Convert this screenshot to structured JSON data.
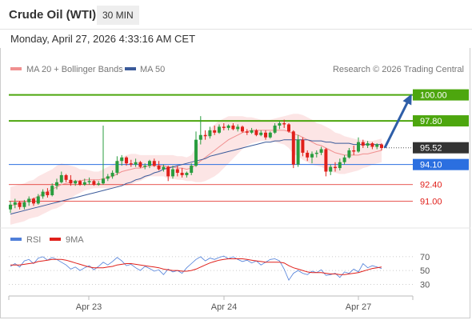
{
  "header": {
    "title": "Crude Oil (WTI)",
    "timeframe": "30 MIN",
    "timestamp": "Monday, April 27, 2026 4:33:16 AM CET"
  },
  "legend": {
    "ma20": "MA 20 + Bollinger Bands",
    "ma50": "MA 50",
    "credit": "Research © 2026 Trading Central",
    "rsi": "RSI",
    "rsi_ma": "9MA"
  },
  "colors": {
    "up": "#2a9d3f",
    "down": "#e0201b",
    "ma20": "#f09090",
    "ma50": "#3a5a9a",
    "band": "#fbe0e0",
    "resistance": "#4da60e",
    "support": "#2b6fe0",
    "level_red": "#e0201b",
    "current": "#333333",
    "arrow": "#2e5ea8",
    "rsi": "#4f7fd9",
    "rsi_ma": "#e0201b"
  },
  "chart_data": {
    "type": "candlestick",
    "ylim": [
      89.4,
      101.6
    ],
    "x_ticks": [
      "Apr 23",
      "Apr 24",
      "Apr 27"
    ],
    "current_price": 95.52,
    "target_price": 100.0,
    "levels": [
      {
        "value": 100.0,
        "label": "100.00",
        "kind": "resistance"
      },
      {
        "value": 97.8,
        "label": "97.80",
        "kind": "resistance"
      },
      {
        "value": 95.52,
        "label": "95.52",
        "kind": "current"
      },
      {
        "value": 94.1,
        "label": "94.10",
        "kind": "support"
      },
      {
        "value": 92.4,
        "label": "92.40",
        "kind": "support-red"
      },
      {
        "value": 91.0,
        "label": "91.00",
        "kind": "support-red"
      }
    ],
    "candles": [
      [
        90.3,
        91.0,
        90.0,
        90.7
      ],
      [
        90.7,
        91.2,
        90.4,
        90.9
      ],
      [
        90.9,
        91.0,
        90.3,
        90.5
      ],
      [
        90.5,
        91.1,
        90.3,
        90.9
      ],
      [
        90.9,
        91.4,
        90.6,
        91.2
      ],
      [
        91.2,
        91.3,
        90.6,
        90.8
      ],
      [
        90.8,
        91.6,
        90.7,
        91.4
      ],
      [
        91.4,
        92.0,
        91.2,
        91.8
      ],
      [
        91.8,
        92.1,
        91.3,
        91.5
      ],
      [
        91.5,
        92.5,
        91.4,
        92.3
      ],
      [
        92.3,
        92.9,
        92.0,
        92.6
      ],
      [
        92.6,
        93.5,
        92.5,
        93.2
      ],
      [
        93.2,
        93.3,
        92.6,
        92.8
      ],
      [
        92.8,
        93.2,
        92.3,
        92.5
      ],
      [
        92.5,
        92.8,
        92.3,
        92.7
      ],
      [
        92.7,
        92.8,
        92.3,
        92.4
      ],
      [
        92.4,
        92.9,
        92.3,
        92.6
      ],
      [
        92.6,
        93.0,
        92.4,
        92.7
      ],
      [
        92.7,
        92.8,
        92.3,
        92.4
      ],
      [
        92.4,
        92.7,
        92.3,
        92.5
      ],
      [
        92.5,
        97.4,
        92.4,
        92.9
      ],
      [
        92.9,
        93.3,
        92.7,
        93.1
      ],
      [
        93.1,
        93.6,
        92.9,
        93.4
      ],
      [
        93.4,
        94.8,
        93.2,
        94.4
      ],
      [
        94.4,
        94.9,
        94.0,
        94.7
      ],
      [
        94.7,
        94.8,
        94.0,
        94.2
      ],
      [
        94.2,
        94.5,
        93.9,
        94.1
      ],
      [
        94.1,
        94.6,
        93.9,
        94.3
      ],
      [
        94.3,
        94.4,
        93.8,
        93.9
      ],
      [
        93.9,
        94.2,
        93.7,
        94.0
      ],
      [
        94.0,
        94.5,
        93.8,
        94.4
      ],
      [
        94.4,
        94.6,
        93.9,
        94.0
      ],
      [
        94.0,
        94.4,
        93.6,
        93.7
      ],
      [
        93.7,
        94.1,
        93.5,
        93.9
      ],
      [
        93.9,
        94.0,
        92.7,
        93.1
      ],
      [
        93.1,
        94.0,
        92.9,
        93.7
      ],
      [
        93.7,
        94.0,
        93.1,
        93.4
      ],
      [
        93.4,
        93.8,
        93.0,
        93.2
      ],
      [
        93.2,
        93.5,
        93.0,
        93.4
      ],
      [
        93.4,
        94.2,
        93.2,
        94.0
      ],
      [
        94.0,
        96.9,
        93.9,
        96.2
      ],
      [
        96.2,
        98.2,
        95.8,
        96.6
      ],
      [
        96.6,
        97.0,
        96.2,
        96.5
      ],
      [
        96.5,
        97.3,
        96.3,
        97.0
      ],
      [
        97.0,
        97.4,
        96.6,
        96.8
      ],
      [
        96.8,
        97.5,
        96.7,
        97.3
      ],
      [
        97.3,
        97.6,
        97.0,
        97.2
      ],
      [
        97.2,
        97.5,
        97.0,
        97.4
      ],
      [
        97.4,
        97.6,
        97.0,
        97.1
      ],
      [
        97.1,
        97.5,
        96.9,
        97.3
      ],
      [
        97.3,
        97.4,
        96.8,
        96.9
      ],
      [
        96.9,
        97.1,
        96.6,
        96.8
      ],
      [
        96.8,
        97.2,
        96.7,
        97.0
      ],
      [
        97.0,
        97.1,
        96.5,
        96.6
      ],
      [
        96.6,
        97.0,
        96.5,
        96.8
      ],
      [
        96.8,
        97.0,
        96.2,
        96.4
      ],
      [
        96.4,
        96.9,
        96.3,
        96.8
      ],
      [
        96.8,
        97.6,
        96.7,
        97.4
      ],
      [
        97.4,
        97.8,
        97.1,
        97.6
      ],
      [
        97.6,
        97.9,
        97.2,
        97.5
      ],
      [
        97.5,
        97.6,
        96.8,
        96.9
      ],
      [
        96.9,
        97.0,
        93.8,
        94.1
      ],
      [
        94.1,
        96.6,
        93.9,
        96.2
      ],
      [
        96.2,
        96.4,
        94.8,
        95.1
      ],
      [
        95.1,
        95.3,
        94.4,
        94.7
      ],
      [
        94.7,
        95.2,
        94.2,
        95.0
      ],
      [
        95.0,
        95.3,
        94.7,
        95.1
      ],
      [
        95.1,
        95.6,
        94.9,
        95.4
      ],
      [
        95.4,
        95.5,
        93.1,
        93.5
      ],
      [
        93.5,
        94.1,
        93.2,
        93.9
      ],
      [
        93.9,
        94.3,
        93.5,
        93.8
      ],
      [
        93.8,
        94.6,
        93.6,
        94.3
      ],
      [
        94.3,
        94.9,
        94.1,
        94.7
      ],
      [
        94.7,
        95.5,
        94.6,
        95.3
      ],
      [
        95.3,
        95.7,
        94.9,
        95.2
      ],
      [
        95.2,
        96.4,
        95.1,
        96.0
      ],
      [
        96.0,
        96.2,
        95.5,
        95.7
      ],
      [
        95.7,
        96.1,
        95.5,
        95.9
      ],
      [
        95.9,
        96.0,
        95.4,
        95.6
      ],
      [
        95.6,
        95.9,
        95.4,
        95.8
      ],
      [
        95.8,
        95.9,
        95.3,
        95.5
      ]
    ],
    "ma20": [
      90.6,
      90.7,
      90.8,
      90.9,
      91.1,
      91.2,
      91.4,
      91.6,
      91.8,
      92.0,
      92.2,
      92.4,
      92.5,
      92.6,
      92.7,
      92.7,
      92.8,
      92.8,
      92.8,
      92.8,
      92.9,
      93.0,
      93.1,
      93.3,
      93.5,
      93.6,
      93.7,
      93.8,
      93.8,
      93.9,
      94.0,
      94.0,
      94.0,
      94.0,
      93.9,
      93.9,
      93.8,
      93.8,
      93.7,
      93.8,
      94.1,
      94.4,
      94.7,
      95.0,
      95.3,
      95.6,
      95.9,
      96.2,
      96.4,
      96.6,
      96.8,
      96.9,
      97.0,
      97.0,
      97.0,
      97.0,
      97.0,
      97.0,
      97.0,
      97.0,
      96.9,
      96.7,
      96.6,
      96.4,
      96.2,
      96.0,
      95.8,
      95.7,
      95.5,
      95.3,
      95.1,
      95.0,
      94.9,
      94.9,
      94.9,
      94.9,
      95.0,
      95.0,
      95.1,
      95.2,
      95.3
    ],
    "ma50": [
      89.9,
      90.0,
      90.1,
      90.2,
      90.3,
      90.4,
      90.5,
      90.6,
      90.7,
      90.8,
      90.9,
      91.0,
      91.1,
      91.2,
      91.3,
      91.4,
      91.5,
      91.6,
      91.7,
      91.8,
      91.9,
      92.0,
      92.1,
      92.2,
      92.3,
      92.5,
      92.6,
      92.8,
      92.9,
      93.1,
      93.2,
      93.4,
      93.5,
      93.7,
      93.8,
      93.9,
      94.0,
      94.1,
      94.2,
      94.3,
      94.4,
      94.5,
      94.6,
      94.8,
      94.9,
      95.0,
      95.1,
      95.2,
      95.3,
      95.4,
      95.5,
      95.6,
      95.7,
      95.8,
      95.9,
      96.0,
      96.0,
      96.1,
      96.1,
      96.2,
      96.2,
      96.2,
      96.2,
      96.2,
      96.2,
      96.1,
      96.1,
      96.1,
      96.0,
      96.0,
      95.9,
      95.9,
      95.9,
      95.9,
      95.8,
      95.8,
      95.8,
      95.8,
      95.8,
      95.8,
      95.8
    ],
    "bb_width": [
      1.6,
      1.6,
      1.6,
      1.6,
      1.6,
      1.6,
      1.7,
      1.7,
      1.7,
      1.7,
      1.8,
      1.8,
      1.6,
      1.4,
      1.2,
      1.0,
      0.9,
      0.8,
      0.7,
      0.7,
      0.8,
      0.9,
      1.0,
      1.1,
      1.2,
      1.3,
      1.3,
      1.2,
      1.1,
      1.0,
      0.9,
      0.9,
      0.9,
      0.9,
      1.0,
      1.0,
      1.0,
      1.0,
      1.0,
      1.1,
      1.5,
      1.8,
      2.0,
      2.1,
      2.2,
      2.2,
      2.1,
      2.0,
      1.8,
      1.6,
      1.4,
      1.2,
      1.1,
      1.0,
      0.9,
      0.9,
      0.9,
      1.0,
      1.1,
      1.2,
      1.4,
      1.7,
      1.8,
      1.9,
      1.9,
      1.9,
      1.8,
      1.8,
      1.8,
      1.8,
      1.7,
      1.7,
      1.6,
      1.5,
      1.4,
      1.3,
      1.2,
      1.1,
      1.0,
      1.0,
      1.0
    ],
    "rsi": {
      "ylim": [
        20,
        78
      ],
      "ticks": [
        70,
        50,
        30
      ],
      "rsi": [
        56,
        60,
        55,
        64,
        66,
        60,
        68,
        70,
        65,
        69,
        66,
        62,
        58,
        52,
        55,
        50,
        54,
        57,
        51,
        56,
        62,
        58,
        63,
        69,
        64,
        57,
        59,
        54,
        50,
        56,
        53,
        49,
        51,
        44,
        52,
        48,
        50,
        46,
        54,
        60,
        66,
        70,
        64,
        68,
        66,
        69,
        71,
        67,
        70,
        66,
        63,
        65,
        61,
        64,
        58,
        62,
        66,
        67,
        64,
        52,
        36,
        46,
        50,
        46,
        44,
        49,
        47,
        51,
        43,
        44,
        46,
        40,
        48,
        46,
        52,
        48,
        60,
        54,
        57,
        55,
        53
      ],
      "ma": [
        58,
        58,
        58,
        59,
        60,
        61,
        63,
        64,
        65,
        66,
        66,
        66,
        65,
        63,
        61,
        59,
        57,
        55,
        54,
        54,
        54,
        55,
        56,
        58,
        59,
        60,
        60,
        59,
        58,
        57,
        56,
        55,
        54,
        52,
        51,
        50,
        50,
        49,
        49,
        50,
        52,
        55,
        58,
        61,
        63,
        65,
        66,
        67,
        67,
        67,
        67,
        66,
        65,
        64,
        63,
        62,
        62,
        62,
        62,
        61,
        57,
        54,
        52,
        50,
        48,
        47,
        47,
        47,
        46,
        45,
        45,
        44,
        44,
        45,
        46,
        47,
        49,
        51,
        53,
        54,
        55
      ]
    }
  }
}
